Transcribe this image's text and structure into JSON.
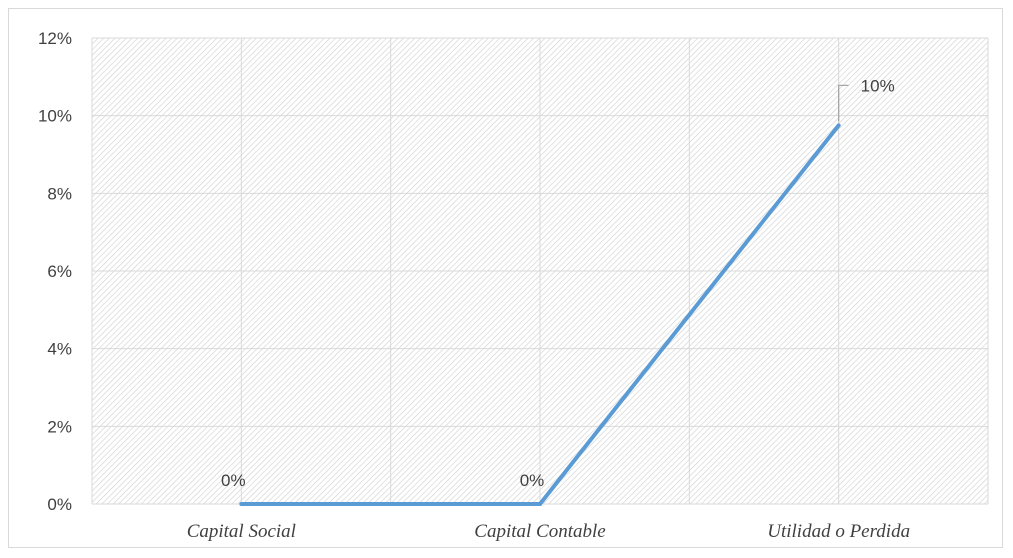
{
  "chart_data": {
    "type": "line",
    "categories": [
      "Capital Social",
      "Capital Contable",
      "Utilidad o Perdida"
    ],
    "series": [
      {
        "values": [
          0,
          0,
          0.0975
        ]
      }
    ],
    "data_labels": [
      "0%",
      "0%",
      "10%"
    ],
    "y_ticks": [
      "0%",
      "2%",
      "4%",
      "6%",
      "8%",
      "10%",
      "12%"
    ],
    "ylim": [
      0,
      0.12
    ],
    "grid": true,
    "legend": "none",
    "colors": {
      "line": "#5b9bd5",
      "grid": "#d9d9d9",
      "hatch": "#d0d0d0",
      "leader": "#a6a6a6"
    }
  }
}
